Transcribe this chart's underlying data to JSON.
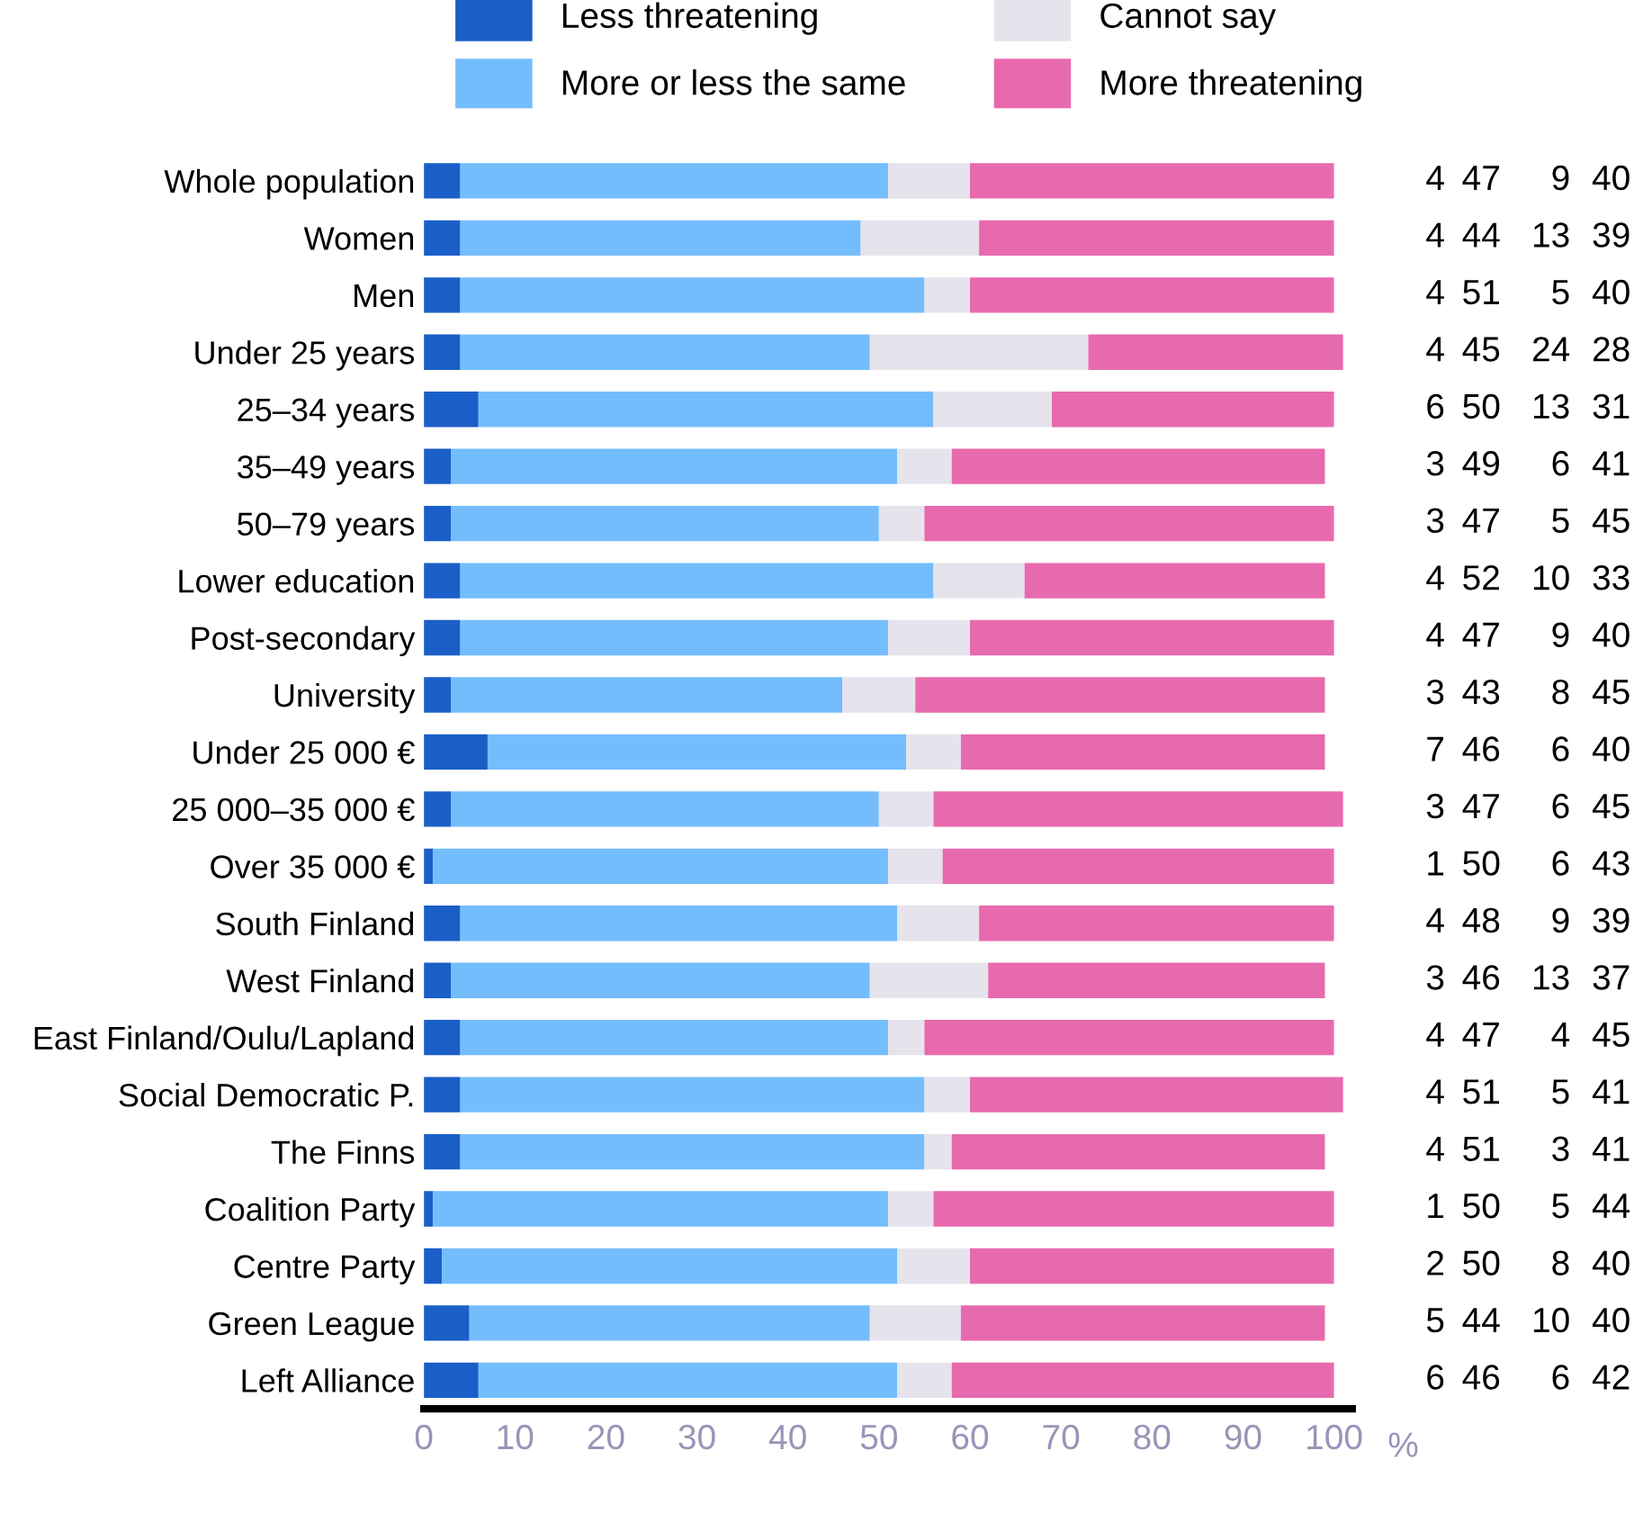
{
  "chart_data": {
    "type": "bar",
    "orientation": "horizontal",
    "stacked": true,
    "data_labels": true,
    "legend": "top",
    "grid": false,
    "xlabel": "%",
    "categories": [
      "Whole population",
      "Women",
      "Men",
      "Under 25 years",
      "25–34 years",
      "35–49 years",
      "50–79 years",
      "Lower education",
      "Post-secondary",
      "University",
      "Under 25 000 €",
      "25 000–35 000 €",
      "Over 35 000 €",
      "South Finland",
      "West Finland",
      "East Finland/Oulu/Lapland",
      "Social Democratic P.",
      "The Finns",
      "Coalition Party",
      "Centre Party",
      "Green League",
      "Left Alliance"
    ],
    "series": [
      {
        "name": "Less threatening",
        "color": "#1a5fc8",
        "values": [
          4,
          4,
          4,
          4,
          6,
          3,
          3,
          4,
          4,
          3,
          7,
          3,
          1,
          4,
          3,
          4,
          4,
          4,
          1,
          2,
          5,
          6
        ]
      },
      {
        "name": "More or less the same",
        "color": "#74bdfc",
        "values": [
          47,
          44,
          51,
          45,
          50,
          49,
          47,
          52,
          47,
          43,
          46,
          47,
          50,
          48,
          46,
          47,
          51,
          51,
          50,
          50,
          44,
          46
        ]
      },
      {
        "name": "Cannot say",
        "color": "#e6e3ec",
        "values": [
          9,
          13,
          5,
          24,
          13,
          6,
          5,
          10,
          9,
          8,
          6,
          6,
          6,
          9,
          13,
          4,
          5,
          3,
          5,
          8,
          10,
          6
        ]
      },
      {
        "name": "More threatening",
        "color": "#e86aae",
        "values": [
          40,
          39,
          40,
          28,
          31,
          41,
          45,
          33,
          40,
          45,
          40,
          45,
          43,
          39,
          37,
          45,
          41,
          41,
          44,
          40,
          40,
          42
        ]
      }
    ],
    "xlim": [
      0,
      102
    ],
    "xticks": [
      0,
      10,
      20,
      30,
      40,
      50,
      60,
      70,
      80,
      90,
      100
    ]
  }
}
